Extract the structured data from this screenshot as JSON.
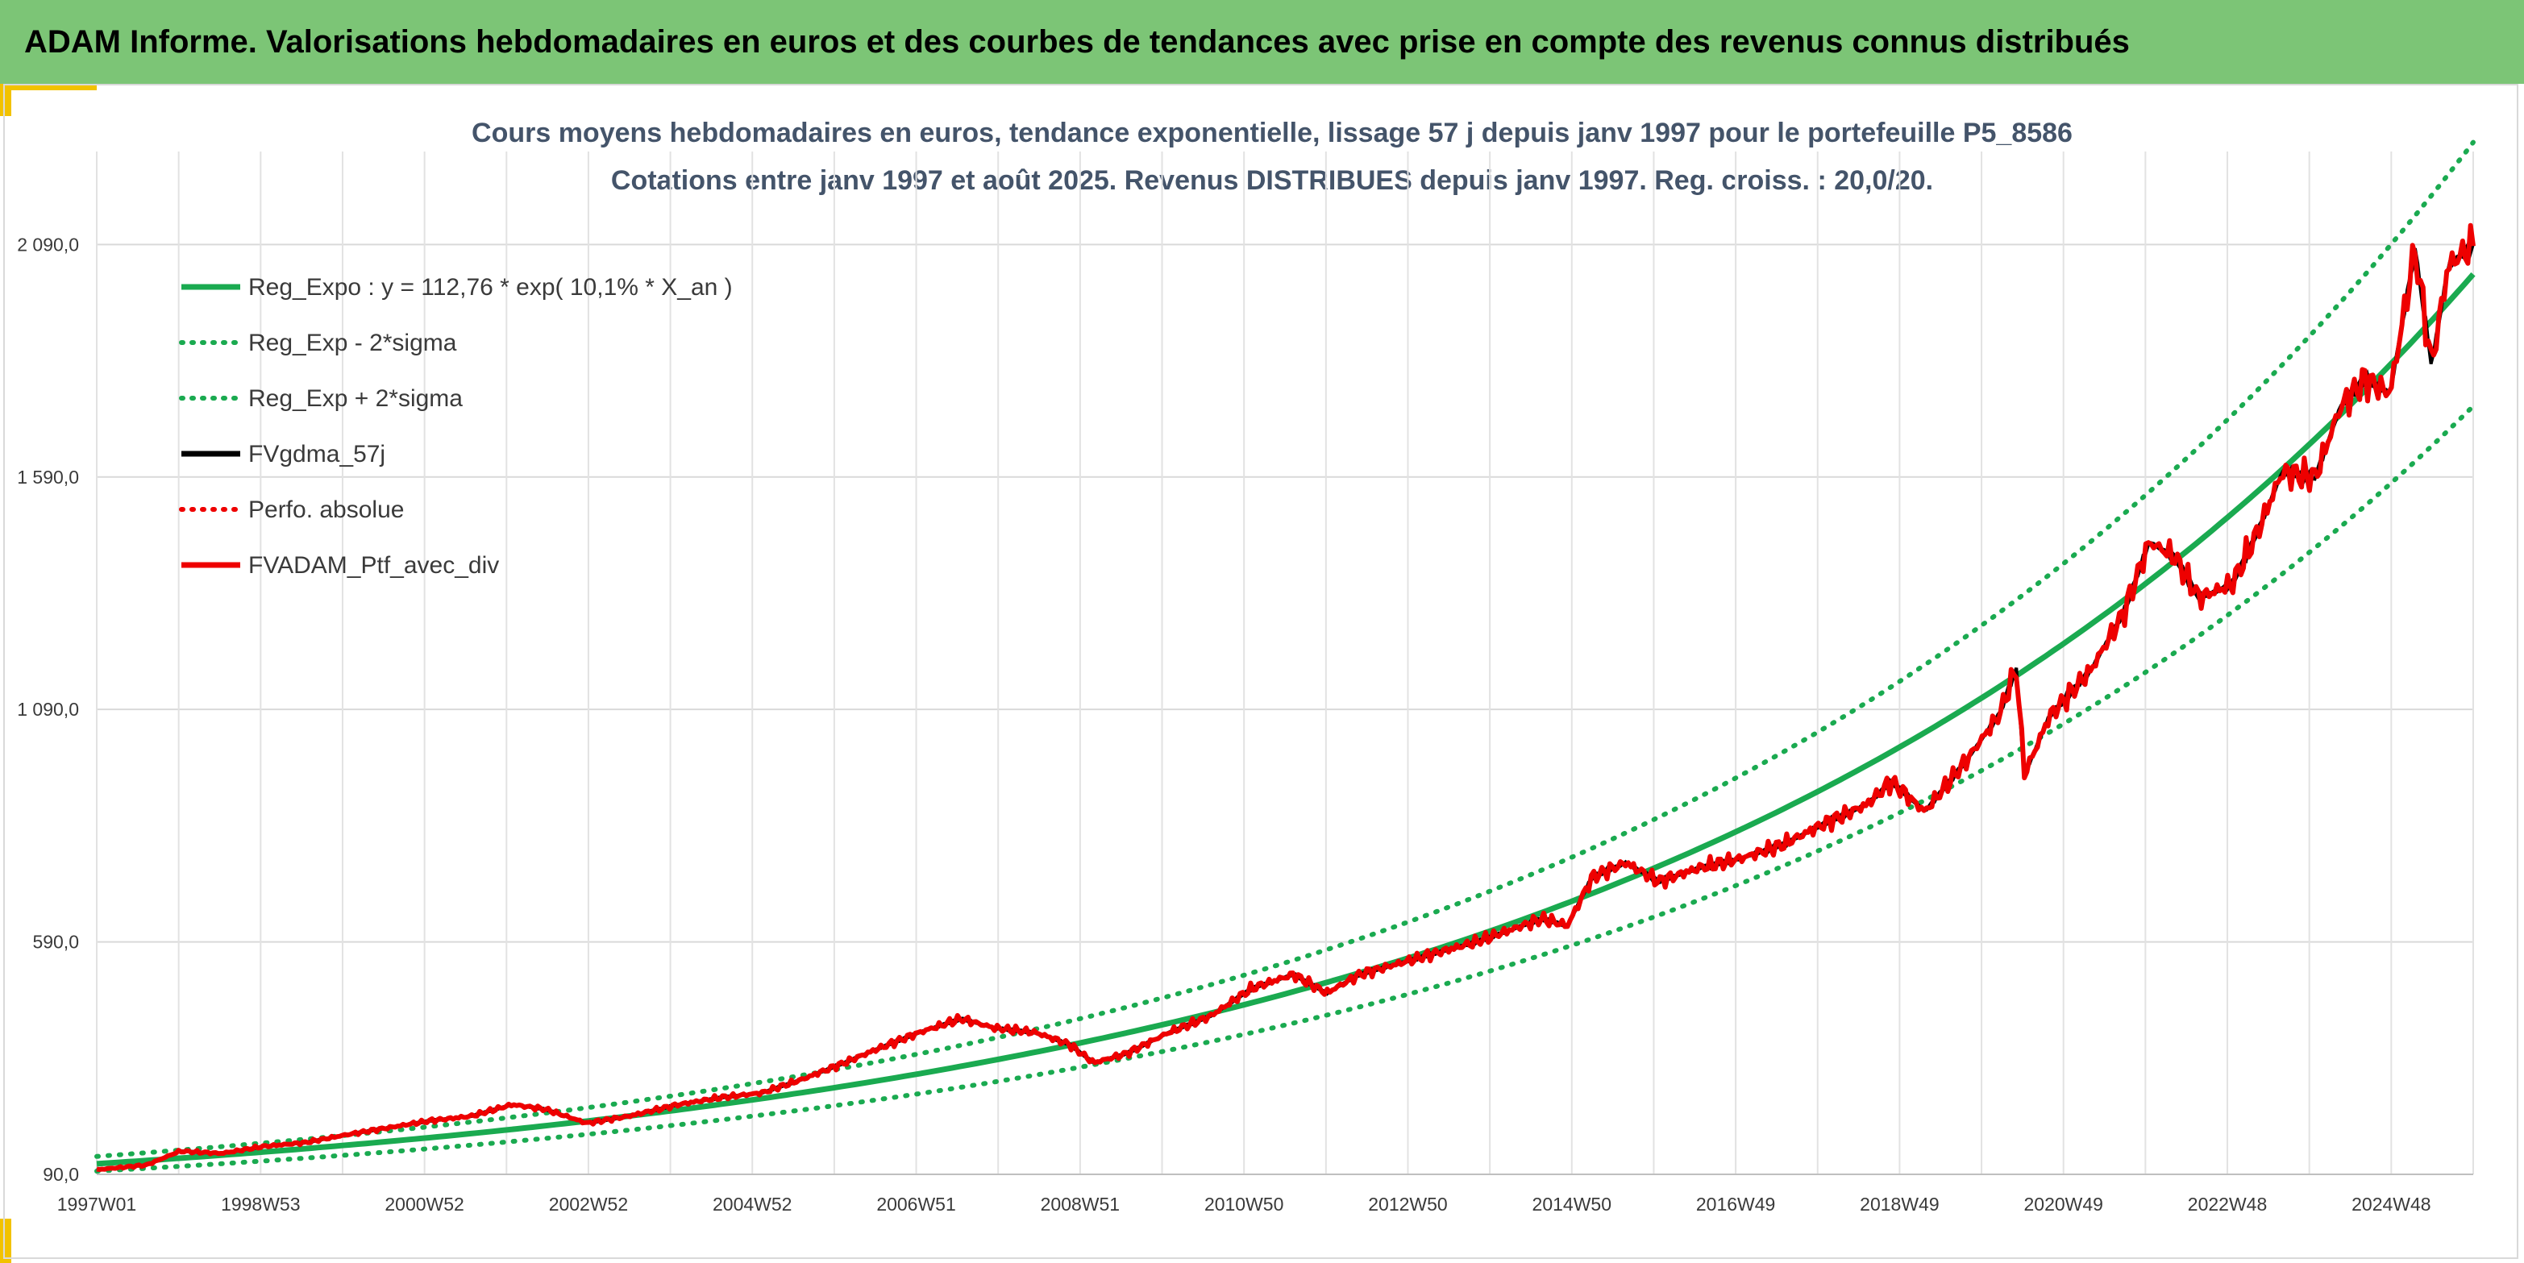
{
  "header": {
    "title": "ADAM Informe. Valorisations hebdomadaires en euros et des courbes de tendances avec prise en compte des revenus connus distribués"
  },
  "colors": {
    "header_bg": "#7cc576",
    "accent": "#f2c200",
    "trend": "#1aaa50",
    "smoothed": "#000000",
    "portfolio": "#ee0000"
  },
  "chart_data": {
    "type": "line",
    "title": "Cours moyens hebdomadaires en euros, tendance exponentielle, lissage 57 j depuis janv 1997 pour le portefeuille P5_8586",
    "subtitle": "Cotations entre janv 1997 et août 2025. Revenus DISTRIBUES depuis janv 1997. Reg. croiss. : 20,0/20.",
    "xlabel": "",
    "ylabel": "",
    "x_tick_labels": [
      "1997W01",
      "1998W53",
      "2000W52",
      "2002W52",
      "2004W52",
      "2006W51",
      "2008W51",
      "2010W50",
      "2012W50",
      "2014W50",
      "2016W49",
      "2018W49",
      "2020W49",
      "2022W48",
      "2024W48"
    ],
    "x_range_years": [
      1997.0,
      2025.6
    ],
    "y_ticks": [
      "90,0",
      "590,0",
      "1 090,0",
      "1 590,0",
      "2 090,0"
    ],
    "ylim": [
      90,
      2290
    ],
    "grid": true,
    "legend_position": "top-left",
    "legend": [
      {
        "label": "Reg_Expo : y = 112,76 * exp( 10,1% *  X_an )",
        "style": "solid",
        "color": "#1aaa50"
      },
      {
        "label": "Reg_Exp - 2*sigma",
        "style": "dotted",
        "color": "#1aaa50"
      },
      {
        "label": "Reg_Exp + 2*sigma",
        "style": "dotted",
        "color": "#1aaa50"
      },
      {
        "label": "FVgdma_57j",
        "style": "solid",
        "color": "#000000"
      },
      {
        "label": "Perfo. absolue",
        "style": "dotted",
        "color": "#ee0000"
      },
      {
        "label": "FVADAM_Ptf_avec_div",
        "style": "solid",
        "color": "#ee0000"
      }
    ],
    "regression": {
      "a": 112.76,
      "rate": 0.101
    },
    "band_factors": {
      "lower": 0.86,
      "upper": 1.14
    },
    "portfolio_points": [
      [
        1997.0,
        100
      ],
      [
        1997.6,
        110
      ],
      [
        1998.0,
        140
      ],
      [
        1998.5,
        135
      ],
      [
        1999.0,
        150
      ],
      [
        1999.5,
        158
      ],
      [
        2000.0,
        175
      ],
      [
        2000.5,
        190
      ],
      [
        2001.0,
        205
      ],
      [
        2001.5,
        215
      ],
      [
        2002.0,
        240
      ],
      [
        2002.4,
        230
      ],
      [
        2002.9,
        200
      ],
      [
        2003.4,
        215
      ],
      [
        2004.0,
        240
      ],
      [
        2004.5,
        255
      ],
      [
        2005.0,
        265
      ],
      [
        2005.5,
        295
      ],
      [
        2006.0,
        330
      ],
      [
        2006.4,
        360
      ],
      [
        2006.9,
        395
      ],
      [
        2007.4,
        425
      ],
      [
        2007.8,
        405
      ],
      [
        2008.3,
        395
      ],
      [
        2008.7,
        370
      ],
      [
        2009.0,
        330
      ],
      [
        2009.4,
        350
      ],
      [
        2009.9,
        395
      ],
      [
        2010.4,
        430
      ],
      [
        2010.9,
        490
      ],
      [
        2011.4,
        520
      ],
      [
        2011.8,
        480
      ],
      [
        2012.2,
        520
      ],
      [
        2012.7,
        545
      ],
      [
        2013.2,
        570
      ],
      [
        2013.6,
        590
      ],
      [
        2014.0,
        615
      ],
      [
        2014.4,
        640
      ],
      [
        2014.7,
        625
      ],
      [
        2015.0,
        730
      ],
      [
        2015.4,
        760
      ],
      [
        2015.8,
        720
      ],
      [
        2016.3,
        750
      ],
      [
        2016.8,
        770
      ],
      [
        2017.3,
        800
      ],
      [
        2017.8,
        845
      ],
      [
        2018.3,
        885
      ],
      [
        2018.6,
        935
      ],
      [
        2019.0,
        870
      ],
      [
        2019.5,
        980
      ],
      [
        2019.9,
        1080
      ],
      [
        2020.1,
        1180
      ],
      [
        2020.2,
        950
      ],
      [
        2020.5,
        1075
      ],
      [
        2021.0,
        1175
      ],
      [
        2021.4,
        1300
      ],
      [
        2021.7,
        1450
      ],
      [
        2022.0,
        1420
      ],
      [
        2022.3,
        1330
      ],
      [
        2022.7,
        1360
      ],
      [
        2023.0,
        1470
      ],
      [
        2023.3,
        1600
      ],
      [
        2023.7,
        1590
      ],
      [
        2024.0,
        1740
      ],
      [
        2024.3,
        1800
      ],
      [
        2024.6,
        1770
      ],
      [
        2024.9,
        2080
      ],
      [
        2025.1,
        1830
      ],
      [
        2025.3,
        2045
      ],
      [
        2025.6,
        2090
      ]
    ]
  }
}
